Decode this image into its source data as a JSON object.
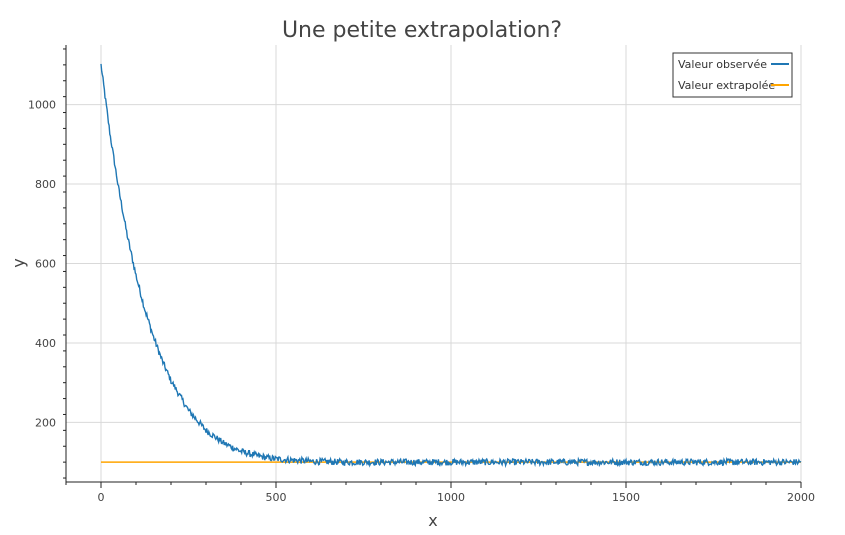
{
  "chart_data": {
    "type": "line",
    "title": "Une petite extrapolation?",
    "xlabel": "x",
    "ylabel": "y",
    "xlim": [
      -100,
      2000
    ],
    "ylim": [
      50,
      1150
    ],
    "x_ticks": [
      0,
      500,
      1000,
      1500,
      2000
    ],
    "y_ticks": [
      200,
      400,
      600,
      800,
      1000
    ],
    "x_tick_labels": [
      "0",
      "500",
      "1000",
      "1500",
      "2000"
    ],
    "y_tick_labels": [
      "200",
      "400",
      "600",
      "800",
      "1000"
    ],
    "grid": true,
    "legend_position": "top-right",
    "series": [
      {
        "name": "Valeur observée",
        "color": "#1f77b4",
        "x": [
          0,
          25,
          50,
          75,
          100,
          125,
          150,
          175,
          200,
          250,
          300,
          350,
          400,
          450,
          500,
          600,
          700,
          800,
          1000,
          1200,
          1400,
          1600,
          1800,
          2000
        ],
        "y": [
          1100,
          930,
          790,
          670,
          570,
          485,
          415,
          355,
          305,
          230,
          180,
          148,
          127,
          115,
          108,
          102,
          100,
          100,
          100,
          100,
          100,
          100,
          100,
          100
        ],
        "noise_amplitude": 8
      },
      {
        "name": "Valeur extrapolée",
        "color": "#ffa500",
        "x": [
          0,
          2000
        ],
        "y": [
          100,
          100
        ]
      }
    ]
  }
}
